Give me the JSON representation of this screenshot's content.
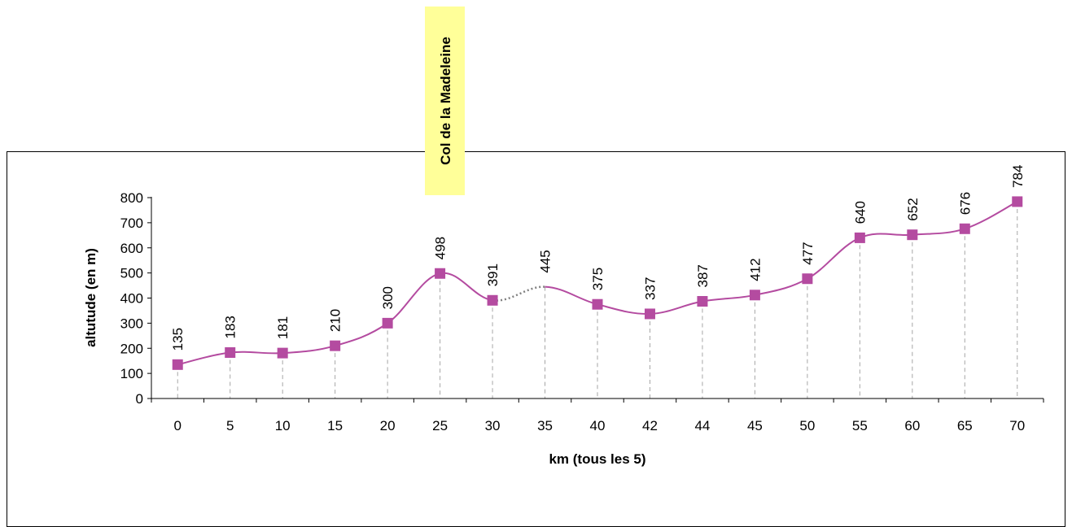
{
  "chart_data": {
    "type": "line",
    "title": "",
    "xlabel": "km (tous les 5)",
    "ylabel": "altutude (en m)",
    "ylim": [
      0,
      800
    ],
    "y_ticks": [
      "0",
      "100",
      "200",
      "300",
      "400",
      "500",
      "600",
      "700",
      "800"
    ],
    "categories": [
      "0",
      "5",
      "10",
      "15",
      "20",
      "25",
      "30",
      "35",
      "40",
      "42",
      "44",
      "45",
      "50",
      "55",
      "60",
      "65",
      "70"
    ],
    "values": [
      135,
      183,
      181,
      210,
      300,
      498,
      391,
      445,
      375,
      337,
      387,
      412,
      477,
      640,
      652,
      676,
      784
    ],
    "marker_visible": [
      true,
      true,
      true,
      true,
      true,
      true,
      true,
      false,
      true,
      true,
      true,
      true,
      true,
      true,
      true,
      true,
      true
    ],
    "data_labels": [
      "135",
      "183",
      "181",
      "210",
      "300",
      "498",
      "391",
      "445",
      "375",
      "337",
      "387",
      "412",
      "477",
      "640",
      "652",
      "676",
      "784"
    ],
    "dotted_segment": [
      "30",
      "35"
    ],
    "drop_lines": true,
    "grid": false,
    "legend": "none",
    "annotation": {
      "text": "Col de la Madeleine",
      "category": "25",
      "background": "#FFFF99"
    },
    "colors": {
      "line": "#B44BA0",
      "marker": "#B44BA0",
      "dotted": "#808080",
      "drop_line": "#A6A6A6"
    }
  }
}
